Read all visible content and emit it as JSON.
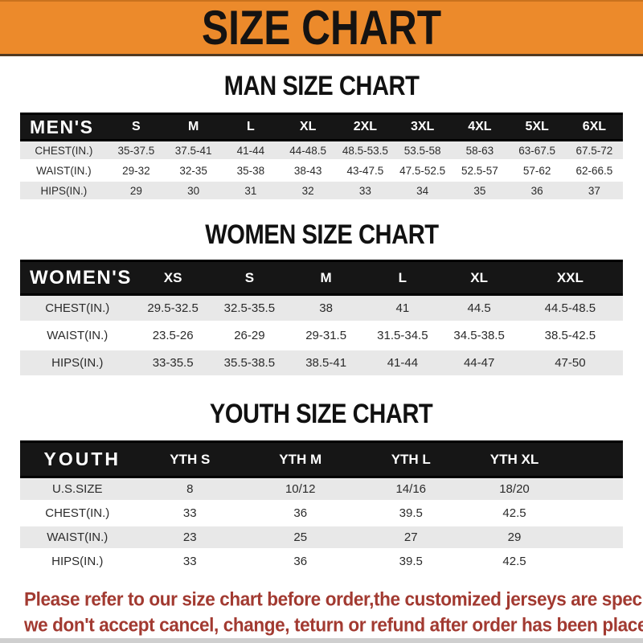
{
  "header": {
    "title": "SIZE CHART",
    "banner_color": "#EC8A2B"
  },
  "sections": [
    {
      "title": "MAN SIZE CHART",
      "corner_label": "MEN'S",
      "columns": [
        "S",
        "M",
        "L",
        "XL",
        "2XL",
        "3XL",
        "4XL",
        "5XL",
        "6XL"
      ],
      "rows": [
        {
          "label": "CHEST(IN.)",
          "values": [
            "35-37.5",
            "37.5-41",
            "41-44",
            "44-48.5",
            "48.5-53.5",
            "53.5-58",
            "58-63",
            "63-67.5",
            "67.5-72"
          ]
        },
        {
          "label": "WAIST(IN.)",
          "values": [
            "29-32",
            "32-35",
            "35-38",
            "38-43",
            "43-47.5",
            "47.5-52.5",
            "52.5-57",
            "57-62",
            "62-66.5"
          ]
        },
        {
          "label": "HIPS(IN.)",
          "values": [
            "29",
            "30",
            "31",
            "32",
            "33",
            "34",
            "35",
            "36",
            "37"
          ]
        }
      ]
    },
    {
      "title": "WOMEN SIZE CHART",
      "corner_label": "WOMEN'S",
      "columns": [
        "XS",
        "S",
        "M",
        "L",
        "XL",
        "XXL"
      ],
      "rows": [
        {
          "label": "CHEST(IN.)",
          "values": [
            "29.5-32.5",
            "32.5-35.5",
            "38",
            "41",
            "44.5",
            "44.5-48.5"
          ]
        },
        {
          "label": "WAIST(IN.)",
          "values": [
            "23.5-26",
            "26-29",
            "29-31.5",
            "31.5-34.5",
            "34.5-38.5",
            "38.5-42.5"
          ]
        },
        {
          "label": "HIPS(IN.)",
          "values": [
            "33-35.5",
            "35.5-38.5",
            "38.5-41",
            "41-44",
            "44-47",
            "47-50"
          ]
        }
      ]
    },
    {
      "title": "YOUTH SIZE CHART",
      "corner_label": "YOUTH",
      "columns": [
        "YTH S",
        "YTH M",
        "YTH L",
        "YTH XL"
      ],
      "rows": [
        {
          "label": "U.S.SIZE",
          "values": [
            "8",
            "10/12",
            "14/16",
            "18/20"
          ]
        },
        {
          "label": "CHEST(IN.)",
          "values": [
            "33",
            "36",
            "39.5",
            "42.5"
          ]
        },
        {
          "label": "WAIST(IN.)",
          "values": [
            "23",
            "25",
            "27",
            "29"
          ]
        },
        {
          "label": "HIPS(IN.)",
          "values": [
            "33",
            "36",
            "39.5",
            "42.5"
          ]
        }
      ]
    }
  ],
  "footer": {
    "line1": "Please refer to our size chart before order,the customized jerseys are special products,",
    "line2": "we don't accept cancel, change, teturn or refund after order has been placed!",
    "text_color": "#A23A31"
  },
  "colors": {
    "banner_orange": "#EC8A2B",
    "header_band_black": "#161616",
    "row_shade_gray": "#e8e8e8",
    "disclaimer_red": "#A23A31"
  }
}
